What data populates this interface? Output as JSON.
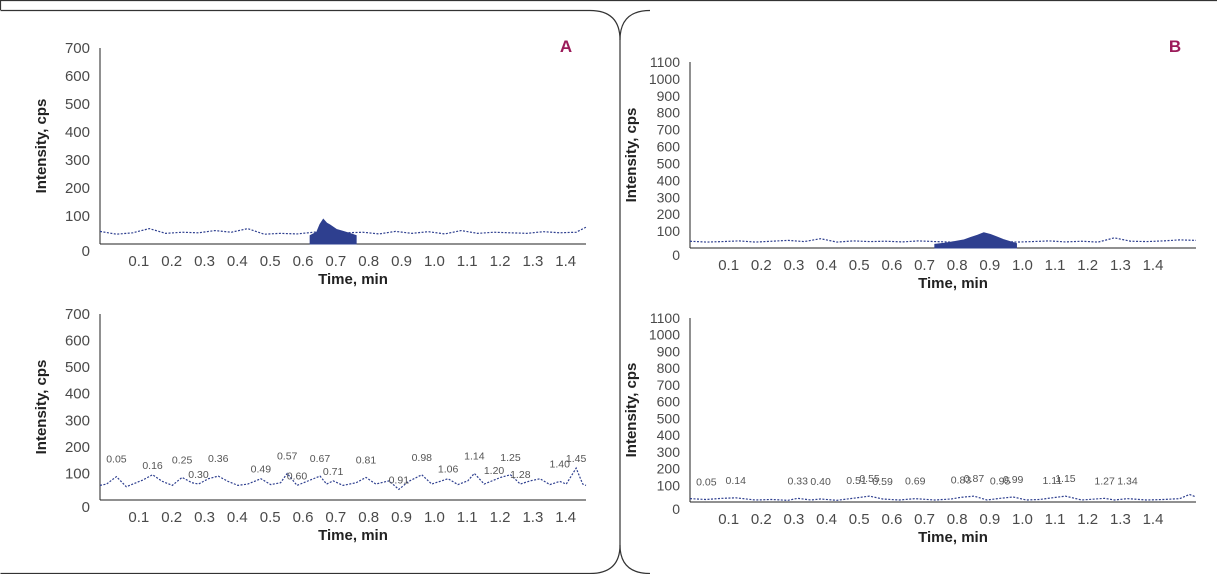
{
  "chart_data": [
    {
      "type": "area",
      "panel": "A",
      "xlabel": "Time, min",
      "ylabel": "Intensity, cps",
      "xlim": [
        0,
        1.48
      ],
      "ylim": [
        0,
        700
      ],
      "yticks": [
        "0",
        "100",
        "200",
        "300",
        "400",
        "500",
        "600",
        "700"
      ],
      "xticks": [
        "0.1",
        "0.2",
        "0.3",
        "0.4",
        "0.5",
        "0.6",
        "0.7",
        "0.8",
        "0.9",
        "1.0",
        "1.1",
        "1.2",
        "1.3",
        "1.4"
      ],
      "series": [
        {
          "style": "dotted",
          "color": "#2e3f8f",
          "x": [
            0,
            0.05,
            0.1,
            0.15,
            0.2,
            0.25,
            0.3,
            0.35,
            0.4,
            0.45,
            0.5,
            0.55,
            0.6,
            0.65,
            0.7,
            0.75,
            0.8,
            0.85,
            0.9,
            0.95,
            1.0,
            1.05,
            1.1,
            1.15,
            1.2,
            1.25,
            1.3,
            1.35,
            1.4,
            1.45,
            1.48
          ],
          "y": [
            45,
            35,
            40,
            55,
            38,
            42,
            40,
            48,
            42,
            55,
            35,
            38,
            36,
            42,
            48,
            40,
            42,
            36,
            45,
            38,
            44,
            36,
            48,
            38,
            42,
            40,
            38,
            44,
            40,
            42,
            60
          ]
        },
        {
          "style": "filled",
          "color": "#2e3f8f",
          "x": [
            0.64,
            0.66,
            0.67,
            0.68,
            0.69,
            0.7,
            0.71,
            0.72,
            0.74,
            0.76,
            0.78
          ],
          "y": [
            30,
            42,
            70,
            88,
            75,
            68,
            60,
            52,
            45,
            38,
            30
          ]
        }
      ]
    },
    {
      "type": "line",
      "panel": "A",
      "xlabel": "Time, min",
      "ylabel": "Intensity, cps",
      "xlim": [
        0,
        1.48
      ],
      "ylim": [
        0,
        700
      ],
      "yticks": [
        "0",
        "100",
        "200",
        "300",
        "400",
        "500",
        "600",
        "700"
      ],
      "xticks": [
        "0.1",
        "0.2",
        "0.3",
        "0.4",
        "0.5",
        "0.6",
        "0.7",
        "0.8",
        "0.9",
        "1.0",
        "1.1",
        "1.2",
        "1.3",
        "1.4"
      ],
      "series": [
        {
          "style": "dotted",
          "color": "#2e3f8f",
          "x": [
            0,
            0.02,
            0.05,
            0.08,
            0.1,
            0.13,
            0.16,
            0.19,
            0.22,
            0.25,
            0.28,
            0.3,
            0.33,
            0.36,
            0.39,
            0.42,
            0.45,
            0.49,
            0.52,
            0.55,
            0.57,
            0.6,
            0.63,
            0.67,
            0.69,
            0.71,
            0.74,
            0.78,
            0.81,
            0.84,
            0.88,
            0.91,
            0.94,
            0.98,
            1.01,
            1.04,
            1.06,
            1.09,
            1.12,
            1.14,
            1.17,
            1.2,
            1.22,
            1.25,
            1.28,
            1.31,
            1.34,
            1.37,
            1.4,
            1.42,
            1.45,
            1.47,
            1.48
          ],
          "y": [
            55,
            60,
            88,
            50,
            60,
            75,
            95,
            70,
            55,
            85,
            65,
            60,
            80,
            90,
            70,
            55,
            60,
            80,
            58,
            65,
            100,
            55,
            70,
            90,
            60,
            72,
            55,
            65,
            85,
            60,
            72,
            40,
            70,
            95,
            60,
            72,
            80,
            58,
            72,
            100,
            60,
            75,
            85,
            95,
            60,
            72,
            80,
            58,
            70,
            60,
            120,
            60,
            55
          ]
        }
      ],
      "annotations": [
        "0.05",
        "0.16",
        "0.25",
        "0.30",
        "0.36",
        "0.49",
        "0.57",
        "0.60",
        "0.67",
        "0.71",
        "0.81",
        "0.91",
        "0.98",
        "1.06",
        "1.14",
        "1.20",
        "1.25",
        "1.28",
        "1.40",
        "1.45"
      ]
    },
    {
      "type": "area",
      "panel": "B",
      "xlabel": "Time, min",
      "ylabel": "Intensity, cps",
      "xlim": [
        0,
        1.55
      ],
      "ylim": [
        0,
        1100
      ],
      "yticks": [
        "0",
        "100",
        "200",
        "300",
        "400",
        "500",
        "600",
        "700",
        "800",
        "900",
        "1000",
        "1100"
      ],
      "xticks": [
        "0.1",
        "0.2",
        "0.3",
        "0.4",
        "0.5",
        "0.6",
        "0.7",
        "0.8",
        "0.9",
        "1.0",
        "1.1",
        "1.2",
        "1.3",
        "1.4"
      ],
      "series": [
        {
          "style": "dotted",
          "color": "#2e3f8f",
          "x": [
            0,
            0.05,
            0.1,
            0.15,
            0.2,
            0.25,
            0.3,
            0.35,
            0.4,
            0.45,
            0.5,
            0.55,
            0.6,
            0.65,
            0.7,
            0.75,
            0.8,
            0.85,
            0.9,
            0.95,
            1.0,
            1.05,
            1.1,
            1.15,
            1.2,
            1.25,
            1.3,
            1.35,
            1.4,
            1.45,
            1.5,
            1.55
          ],
          "y": [
            40,
            35,
            38,
            42,
            35,
            40,
            45,
            38,
            55,
            35,
            42,
            38,
            40,
            36,
            42,
            38,
            35,
            40,
            45,
            40,
            35,
            38,
            42,
            36,
            40,
            35,
            60,
            40,
            38,
            42,
            48,
            45
          ]
        },
        {
          "style": "filled",
          "color": "#2e3f8f",
          "x": [
            0.75,
            0.78,
            0.81,
            0.84,
            0.86,
            0.88,
            0.9,
            0.92,
            0.94,
            0.96,
            0.98,
            1.0
          ],
          "y": [
            22,
            28,
            38,
            48,
            62,
            75,
            90,
            80,
            65,
            50,
            38,
            26
          ]
        }
      ]
    },
    {
      "type": "line",
      "panel": "B",
      "xlabel": "Time, min",
      "ylabel": "Intensity, cps",
      "xlim": [
        0,
        1.55
      ],
      "ylim": [
        0,
        1100
      ],
      "yticks": [
        "0",
        "100",
        "200",
        "300",
        "400",
        "500",
        "600",
        "700",
        "800",
        "900",
        "1000",
        "1100"
      ],
      "xticks": [
        "0.1",
        "0.2",
        "0.3",
        "0.4",
        "0.5",
        "0.6",
        "0.7",
        "0.8",
        "0.9",
        "1.0",
        "1.1",
        "1.2",
        "1.3",
        "1.4"
      ],
      "series": [
        {
          "style": "dotted",
          "color": "#2e3f8f",
          "x": [
            0,
            0.05,
            0.1,
            0.14,
            0.2,
            0.25,
            0.3,
            0.33,
            0.37,
            0.4,
            0.45,
            0.51,
            0.55,
            0.59,
            0.64,
            0.69,
            0.75,
            0.8,
            0.83,
            0.87,
            0.91,
            0.95,
            0.99,
            1.03,
            1.07,
            1.11,
            1.15,
            1.2,
            1.27,
            1.3,
            1.34,
            1.4,
            1.45,
            1.5,
            1.53,
            1.55
          ],
          "y": [
            20,
            15,
            22,
            25,
            12,
            15,
            10,
            22,
            12,
            18,
            10,
            25,
            35,
            18,
            12,
            20,
            12,
            18,
            28,
            35,
            12,
            22,
            30,
            12,
            15,
            25,
            35,
            12,
            22,
            12,
            20,
            12,
            15,
            20,
            45,
            30
          ]
        }
      ],
      "annotations": [
        "0.05",
        "0.14",
        "0.33",
        "0.40",
        "0.51",
        "0.55",
        "0.59",
        "0.69",
        "0.83",
        "0.87",
        "0.95",
        "0.99",
        "1.11",
        "1.15",
        "1.27",
        "1.34"
      ]
    }
  ],
  "panels": {
    "A": {
      "label": "A",
      "label_color": "#9b1b5a"
    },
    "B": {
      "label": "B",
      "label_color": "#9b1b5a"
    }
  },
  "colors": {
    "trace": "#2e3f8f",
    "axis": "#222222",
    "tick_text": "#4a4a4a",
    "annotation": "#555555",
    "border": "#333333"
  }
}
